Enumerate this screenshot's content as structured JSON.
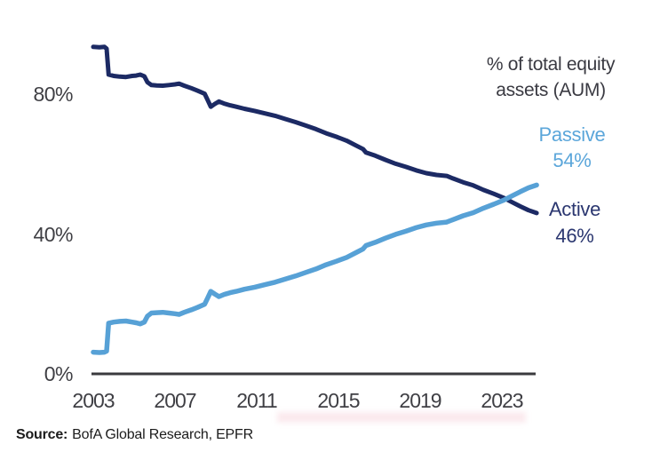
{
  "chart_data": {
    "type": "line",
    "title": "% of total equity assets (AUM)",
    "annotation_lines": [
      "% of total equity",
      "assets (AUM)"
    ],
    "grid": false,
    "legend_position": "end-of-line annotations, right side",
    "xlim": [
      2003,
      2024.7
    ],
    "ylim": [
      0,
      100
    ],
    "x_ticks": [
      {
        "value": 2003,
        "label": "2003"
      },
      {
        "value": 2007,
        "label": "2007"
      },
      {
        "value": 2011,
        "label": "2011"
      },
      {
        "value": 2015,
        "label": "2015"
      },
      {
        "value": 2019,
        "label": "2019"
      },
      {
        "value": 2023,
        "label": "2023"
      }
    ],
    "y_ticks": [
      {
        "value": 80,
        "label": "80%"
      },
      {
        "value": 40,
        "label": "40%"
      },
      {
        "value": 0,
        "label": "0%"
      }
    ],
    "series": [
      {
        "name": "Active",
        "end_label": "Active",
        "end_value_label": "46%",
        "color": "#1c2a64",
        "label_color": "#2b3770",
        "points": [
          [
            2003.0,
            93.5
          ],
          [
            2003.3,
            93.4
          ],
          [
            2003.55,
            93.5
          ],
          [
            2003.65,
            93.0
          ],
          [
            2003.75,
            85.6
          ],
          [
            2004.0,
            85.2
          ],
          [
            2004.3,
            85.0
          ],
          [
            2004.6,
            84.9
          ],
          [
            2004.9,
            85.2
          ],
          [
            2005.1,
            85.3
          ],
          [
            2005.3,
            85.6
          ],
          [
            2005.5,
            85.1
          ],
          [
            2005.65,
            83.4
          ],
          [
            2005.85,
            82.6
          ],
          [
            2006.1,
            82.5
          ],
          [
            2006.4,
            82.4
          ],
          [
            2006.7,
            82.6
          ],
          [
            2007.0,
            82.8
          ],
          [
            2007.2,
            83.0
          ],
          [
            2007.45,
            82.4
          ],
          [
            2007.8,
            81.7
          ],
          [
            2008.1,
            81.0
          ],
          [
            2008.45,
            80.1
          ],
          [
            2008.6,
            78.3
          ],
          [
            2008.75,
            76.4
          ],
          [
            2008.95,
            77.2
          ],
          [
            2009.15,
            77.9
          ],
          [
            2009.4,
            77.3
          ],
          [
            2009.7,
            76.8
          ],
          [
            2010.0,
            76.4
          ],
          [
            2010.4,
            75.8
          ],
          [
            2010.9,
            75.2
          ],
          [
            2011.4,
            74.5
          ],
          [
            2011.9,
            73.8
          ],
          [
            2012.4,
            72.9
          ],
          [
            2012.9,
            72.0
          ],
          [
            2013.4,
            71.0
          ],
          [
            2013.9,
            70.0
          ],
          [
            2014.4,
            68.8
          ],
          [
            2014.9,
            67.8
          ],
          [
            2015.4,
            66.7
          ],
          [
            2015.9,
            65.2
          ],
          [
            2016.2,
            64.3
          ],
          [
            2016.35,
            63.3
          ],
          [
            2016.8,
            62.4
          ],
          [
            2017.3,
            61.2
          ],
          [
            2017.8,
            60.1
          ],
          [
            2018.3,
            59.2
          ],
          [
            2018.8,
            58.2
          ],
          [
            2019.3,
            57.4
          ],
          [
            2019.8,
            56.9
          ],
          [
            2020.3,
            56.6
          ],
          [
            2020.6,
            55.9
          ],
          [
            2021.1,
            54.8
          ],
          [
            2021.6,
            53.9
          ],
          [
            2022.1,
            52.6
          ],
          [
            2022.6,
            51.5
          ],
          [
            2023.1,
            50.3
          ],
          [
            2023.5,
            49.1
          ],
          [
            2023.9,
            47.9
          ],
          [
            2024.3,
            46.8
          ],
          [
            2024.7,
            46.0
          ]
        ]
      },
      {
        "name": "Passive",
        "end_label": "Passive",
        "end_value_label": "54%",
        "color": "#57a1d6",
        "label_color": "#5ba6da",
        "points": [
          [
            2003.0,
            6.2
          ],
          [
            2003.3,
            6.1
          ],
          [
            2003.55,
            6.2
          ],
          [
            2003.65,
            6.5
          ],
          [
            2003.75,
            14.5
          ],
          [
            2004.0,
            14.8
          ],
          [
            2004.3,
            15.0
          ],
          [
            2004.6,
            15.1
          ],
          [
            2004.9,
            14.8
          ],
          [
            2005.1,
            14.6
          ],
          [
            2005.3,
            14.3
          ],
          [
            2005.5,
            14.8
          ],
          [
            2005.65,
            16.5
          ],
          [
            2005.85,
            17.4
          ],
          [
            2006.1,
            17.5
          ],
          [
            2006.4,
            17.6
          ],
          [
            2006.7,
            17.4
          ],
          [
            2007.0,
            17.2
          ],
          [
            2007.2,
            17.0
          ],
          [
            2007.45,
            17.6
          ],
          [
            2007.8,
            18.3
          ],
          [
            2008.1,
            19.0
          ],
          [
            2008.45,
            19.9
          ],
          [
            2008.6,
            21.7
          ],
          [
            2008.75,
            23.6
          ],
          [
            2008.95,
            22.8
          ],
          [
            2009.15,
            22.1
          ],
          [
            2009.4,
            22.7
          ],
          [
            2009.7,
            23.2
          ],
          [
            2010.0,
            23.6
          ],
          [
            2010.4,
            24.2
          ],
          [
            2010.9,
            24.8
          ],
          [
            2011.4,
            25.5
          ],
          [
            2011.9,
            26.2
          ],
          [
            2012.4,
            27.1
          ],
          [
            2012.9,
            28.0
          ],
          [
            2013.4,
            29.0
          ],
          [
            2013.9,
            30.0
          ],
          [
            2014.4,
            31.2
          ],
          [
            2014.9,
            32.2
          ],
          [
            2015.4,
            33.3
          ],
          [
            2015.9,
            34.8
          ],
          [
            2016.2,
            35.7
          ],
          [
            2016.35,
            36.7
          ],
          [
            2016.8,
            37.6
          ],
          [
            2017.3,
            38.8
          ],
          [
            2017.8,
            39.9
          ],
          [
            2018.3,
            40.8
          ],
          [
            2018.8,
            41.8
          ],
          [
            2019.3,
            42.6
          ],
          [
            2019.8,
            43.1
          ],
          [
            2020.3,
            43.4
          ],
          [
            2020.6,
            44.1
          ],
          [
            2021.1,
            45.2
          ],
          [
            2021.6,
            46.1
          ],
          [
            2022.1,
            47.4
          ],
          [
            2022.6,
            48.5
          ],
          [
            2023.1,
            49.7
          ],
          [
            2023.5,
            50.9
          ],
          [
            2023.9,
            52.1
          ],
          [
            2024.3,
            53.2
          ],
          [
            2024.7,
            54.0
          ]
        ]
      }
    ],
    "axis_color": "#3a3a3e"
  },
  "source": {
    "prefix": "Source:",
    "text": "BofA Global Research, EPFR"
  }
}
